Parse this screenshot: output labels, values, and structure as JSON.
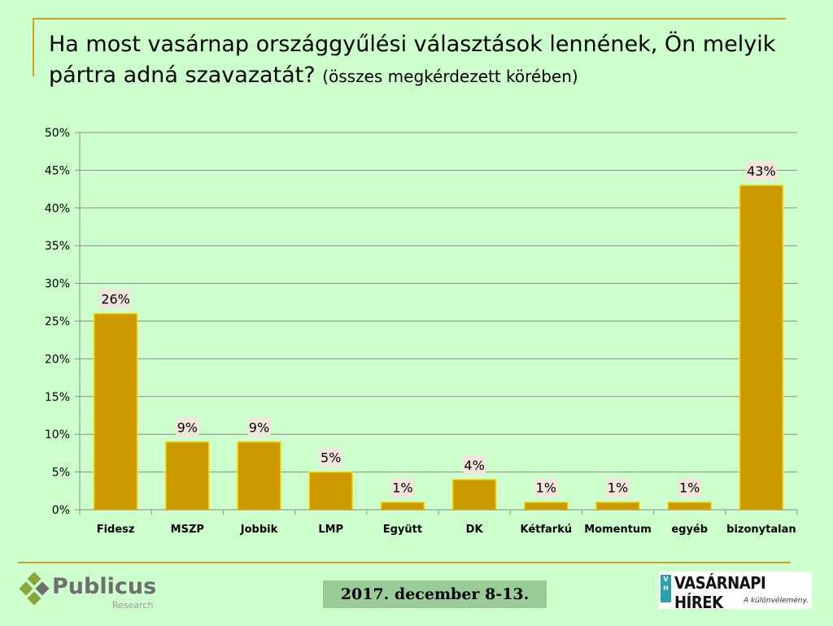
{
  "title": {
    "main": "Ha most vasárnap országgyűlési választások lennének, Ön melyik pártra adná szavazatát?",
    "sub": "(összes megkérdezett körében)"
  },
  "chart_data": {
    "type": "bar",
    "categories": [
      "Fidesz",
      "MSZP",
      "Jobbik",
      "LMP",
      "Együtt",
      "DK",
      "Kétfarkú",
      "Momentum",
      "egyéb",
      "bizonytalan"
    ],
    "values": [
      26,
      9,
      9,
      5,
      1,
      4,
      1,
      1,
      1,
      43
    ],
    "data_labels": [
      "26%",
      "9%",
      "9%",
      "5%",
      "1%",
      "4%",
      "1%",
      "1%",
      "1%",
      "43%"
    ],
    "ylim": [
      0,
      50
    ],
    "yticks": [
      0,
      5,
      10,
      15,
      20,
      25,
      30,
      35,
      40,
      45,
      50
    ],
    "ytick_labels": [
      "0%",
      "5%",
      "10%",
      "15%",
      "20%",
      "25%",
      "30%",
      "35%",
      "40%",
      "45%",
      "50%"
    ],
    "grid": true,
    "colors": {
      "bar": "#cc9900",
      "bar_edge": "#ffd700",
      "label_bg": "#f2e6dc",
      "grid": "#8c8c8c"
    }
  },
  "footer": {
    "date": "2017. december 8-13.",
    "logo_left_name": "Publicus",
    "logo_left_sub": "Research",
    "logo_right_badge": "V H",
    "logo_right_name": "VASÁRNAPI HÍREK",
    "logo_right_tag": "A különvélemény."
  }
}
